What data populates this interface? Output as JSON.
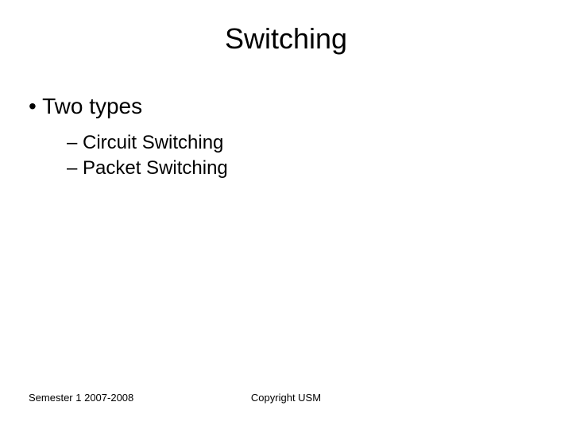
{
  "slide": {
    "title": "Switching",
    "bullets": {
      "main": "Two types",
      "sub": [
        "Circuit Switching",
        "Packet Switching"
      ]
    },
    "footer": {
      "left": "Semester 1 2007-2008",
      "center": "Copyright USM"
    }
  },
  "style": {
    "background_color": "#ffffff",
    "text_color": "#000000",
    "title_fontsize": 36,
    "bullet_l1_fontsize": 28,
    "bullet_l2_fontsize": 24,
    "footer_fontsize": 13,
    "font_family": "Arial"
  }
}
